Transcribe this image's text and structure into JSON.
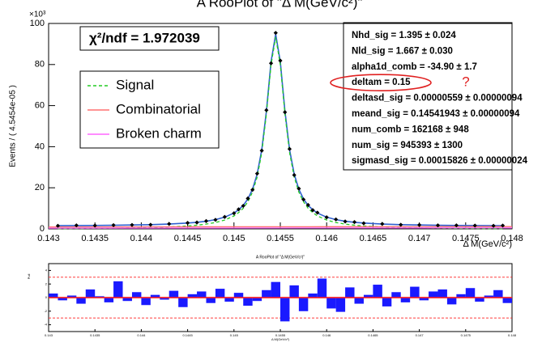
{
  "chart_data": [
    {
      "type": "line",
      "title": "A RooPlot of \"Δ M(GeV/c²)\"",
      "y_label": "Events / ( 4.5454e-05 )",
      "y_multiplier": "×10³",
      "x_label": "Δ M(GeV/c²)",
      "xlim": [
        0.143,
        0.148
      ],
      "xticks": [
        0.143,
        0.1435,
        0.144,
        0.1445,
        0.145,
        0.1455,
        0.146,
        0.1465,
        0.147,
        0.1475,
        0.148
      ],
      "ylim": [
        0,
        100
      ],
      "yticks": [
        0,
        20,
        40,
        60,
        80,
        100
      ],
      "series": [
        {
          "style": "points",
          "color": "#000000",
          "x": [
            0.1431,
            0.1433,
            0.1435,
            0.1437,
            0.1439,
            0.1441,
            0.1443,
            0.1445,
            0.1446,
            0.1447,
            0.1448,
            0.1449,
            0.145,
            0.14505,
            0.1451,
            0.14515,
            0.1452,
            0.14525,
            0.1453,
            0.14535,
            0.1454,
            0.14545,
            0.1455,
            0.14555,
            0.1456,
            0.14565,
            0.1457,
            0.14575,
            0.1458,
            0.14585,
            0.1459,
            0.146,
            0.1461,
            0.1462,
            0.1463,
            0.1464,
            0.1466,
            0.1468,
            0.147,
            0.1472,
            0.1474,
            0.1476,
            0.1478,
            0.1479
          ],
          "values": [
            1.5,
            1.7,
            1.6,
            1.8,
            1.9,
            2.0,
            2.4,
            2.9,
            3.1,
            3.8,
            4.4,
            5.8,
            7.6,
            9.5,
            11.2,
            14.8,
            19.0,
            26.9,
            38.1,
            57.8,
            80.6,
            95.4,
            81.9,
            56.8,
            38.9,
            26.2,
            19.6,
            14.3,
            11.6,
            9.1,
            7.9,
            5.6,
            4.6,
            3.6,
            3.3,
            2.7,
            2.4,
            2.0,
            1.9,
            1.7,
            1.7,
            1.6,
            1.5,
            1.6
          ]
        },
        {
          "style": "line",
          "color": "#3060d0",
          "x": [
            0.1431,
            0.1433,
            0.1435,
            0.1437,
            0.1439,
            0.1441,
            0.1443,
            0.1445,
            0.1446,
            0.1447,
            0.1448,
            0.1449,
            0.145,
            0.14505,
            0.1451,
            0.14515,
            0.1452,
            0.14525,
            0.1453,
            0.14535,
            0.1454,
            0.14545,
            0.1455,
            0.14555,
            0.1456,
            0.14565,
            0.1457,
            0.14575,
            0.1458,
            0.14585,
            0.1459,
            0.146,
            0.1461,
            0.1462,
            0.1463,
            0.1464,
            0.1466,
            0.1468,
            0.147,
            0.1472,
            0.1474,
            0.1476,
            0.1478,
            0.1479
          ],
          "values": [
            1.55,
            1.6,
            1.66,
            1.75,
            1.88,
            2.06,
            2.34,
            2.82,
            3.19,
            3.71,
            4.48,
            5.69,
            7.7,
            9.3,
            11.4,
            14.6,
            19.3,
            26.6,
            38.5,
            57.3,
            81.3,
            94.8,
            81.3,
            57.3,
            38.5,
            26.6,
            19.3,
            14.6,
            11.4,
            9.3,
            7.7,
            5.69,
            4.48,
            3.71,
            3.19,
            2.82,
            2.34,
            2.06,
            1.88,
            1.75,
            1.66,
            1.6,
            1.55,
            1.53
          ]
        },
        {
          "name": "Signal",
          "style": "dashed",
          "color": "#22cc22",
          "x": [
            0.1431,
            0.1433,
            0.1435,
            0.1437,
            0.1439,
            0.1441,
            0.1443,
            0.1445,
            0.1446,
            0.1447,
            0.1448,
            0.1449,
            0.145,
            0.14505,
            0.1451,
            0.14515,
            0.1452,
            0.14525,
            0.1453,
            0.14535,
            0.1454,
            0.14545,
            0.1455,
            0.14555,
            0.1456,
            0.14565,
            0.1457,
            0.14575,
            0.1458,
            0.14585,
            0.1459,
            0.146,
            0.1461,
            0.1462,
            0.1463,
            0.1464,
            0.1466,
            0.1468,
            0.147,
            0.1472,
            0.1474,
            0.1476,
            0.1478,
            0.1479
          ],
          "values": [
            0.15,
            0.2,
            0.26,
            0.35,
            0.48,
            0.66,
            0.94,
            1.42,
            1.79,
            2.31,
            3.08,
            4.29,
            6.3,
            7.9,
            10.0,
            13.2,
            17.9,
            25.2,
            37.1,
            55.9,
            79.9,
            93.4,
            79.9,
            55.9,
            37.1,
            25.2,
            17.9,
            13.2,
            10.0,
            7.9,
            6.3,
            4.29,
            3.08,
            2.31,
            1.79,
            1.42,
            0.94,
            0.66,
            0.48,
            0.35,
            0.26,
            0.2,
            0.15,
            0.13
          ]
        },
        {
          "name": "Combinatorial",
          "style": "solid",
          "color": "#ff7070",
          "x": [
            0.143,
            0.1445,
            0.146,
            0.148
          ],
          "values": [
            0.9,
            1.0,
            1.05,
            1.1
          ]
        },
        {
          "name": "Broken charm",
          "style": "solid",
          "color": "#ff66ff",
          "x": [
            0.143,
            0.1445,
            0.146,
            0.148
          ],
          "values": [
            0.35,
            0.4,
            0.45,
            0.5
          ]
        }
      ],
      "fit_quality": "χ²/ndf = 1.972039",
      "parameters": [
        "Nhd_sig = 1.395 ± 0.024",
        "Nld_sig = 1.667 ± 0.030",
        "alpha1d_comb = -34.90 ± 1.7",
        "deltam = 0.15",
        "deltasd_sig = 0.00000559 ± 0.00000094",
        "meand_sig = 0.14541943 ± 0.00000094",
        "num_comb = 162168 ± 948",
        "num_sig = 945393 ± 1300",
        "sigmasd_sig = 0.00015826 ± 0.00000024"
      ],
      "handwritten_note": "?"
    },
    {
      "type": "histogram",
      "title": "A RooPlot of \"Δ M(GeV/c²)\"",
      "y_label": "Pull",
      "x_label": "Δ M(GeV/c²)",
      "color": "#1a1aff",
      "xlim": [
        0.143,
        0.148
      ],
      "xticks": [
        0.143,
        0.1435,
        0.144,
        0.1445,
        0.145,
        0.1455,
        0.146,
        0.1465,
        0.147,
        0.1475,
        0.148
      ],
      "ylim": [
        -5,
        5
      ],
      "yticks": [
        -4,
        -2,
        0,
        2,
        4
      ],
      "reference_lines": [
        -3,
        0,
        3
      ],
      "bins": [
        0.143,
        0.1431,
        0.1432,
        0.1433,
        0.1434,
        0.1435,
        0.1436,
        0.1437,
        0.1438,
        0.1439,
        0.144,
        0.1441,
        0.1442,
        0.1443,
        0.1444,
        0.1445,
        0.1446,
        0.1447,
        0.1448,
        0.1449,
        0.145,
        0.1451,
        0.1452,
        0.1453,
        0.1454,
        0.1455,
        0.1456,
        0.1457,
        0.1458,
        0.1459,
        0.146,
        0.1461,
        0.1462,
        0.1463,
        0.1464,
        0.1465,
        0.1466,
        0.1467,
        0.1468,
        0.1469,
        0.147,
        0.1471,
        0.1472,
        0.1473,
        0.1474,
        0.1475,
        0.1476,
        0.1477,
        0.1478,
        0.1479,
        0.148
      ],
      "values": [
        0.6,
        -0.4,
        0.3,
        -0.9,
        1.2,
        0.2,
        -0.7,
        2.4,
        -0.5,
        0.8,
        -1.1,
        0.4,
        -0.3,
        1.0,
        -1.4,
        0.5,
        0.9,
        -0.8,
        1.3,
        -0.6,
        0.7,
        -1.2,
        -0.5,
        1.1,
        2.3,
        -3.5,
        1.8,
        -2.0,
        0.6,
        2.8,
        -1.6,
        -2.1,
        1.5,
        -0.9,
        0.4,
        1.9,
        -1.3,
        0.8,
        -0.7,
        1.6,
        -0.4,
        0.9,
        1.2,
        -1.0,
        0.5,
        1.4,
        -0.6,
        0.3,
        1.1,
        -0.8
      ]
    }
  ]
}
